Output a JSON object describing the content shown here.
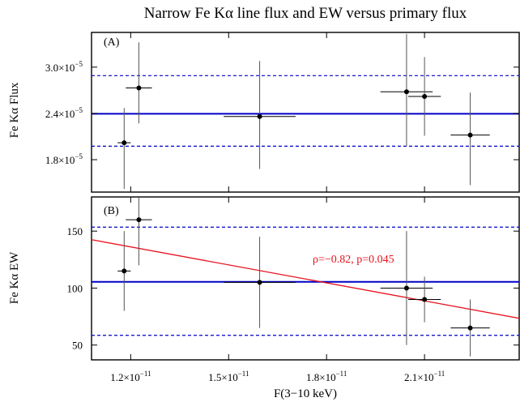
{
  "chart_data": [
    {
      "type": "scatter",
      "panel_label": "(A)",
      "title": "Narrow Fe Kα line flux and EW versus primary flux",
      "ylabel": "Fe Kα Flux",
      "xlabel": "",
      "xlim": [
        1.08e-11,
        2.39e-11
      ],
      "ylim": [
        1.38e-05,
        3.45e-05
      ],
      "xticks": [
        {
          "value": 1.2e-11,
          "mant": "1.2×10",
          "exp": "−11"
        },
        {
          "value": 1.5e-11,
          "mant": "1.5×10",
          "exp": "−11"
        },
        {
          "value": 1.8e-11,
          "mant": "1.8×10",
          "exp": "−11"
        },
        {
          "value": 2.1e-11,
          "mant": "2.1×10",
          "exp": "−11"
        }
      ],
      "yticks": [
        {
          "value": 1.8e-05,
          "mant": "1.8×10",
          "exp": "−5"
        },
        {
          "value": 2.4e-05,
          "mant": "2.4×10",
          "exp": "−5"
        },
        {
          "value": 3e-05,
          "mant": "3.0×10",
          "exp": "−5"
        }
      ],
      "points": [
        {
          "x": 1.18e-11,
          "xerr": 2e-13,
          "y": 2.02e-05,
          "ylo": 1.42e-05,
          "yhi": 2.47e-05
        },
        {
          "x": 1.225e-11,
          "xerr": 4e-13,
          "y": 2.73e-05,
          "ylo": 2.27e-05,
          "yhi": 3.32e-05
        },
        {
          "x": 1.595e-11,
          "xerr": 1.1e-12,
          "y": 2.36e-05,
          "ylo": 1.68e-05,
          "yhi": 3.08e-05
        },
        {
          "x": 2.045e-11,
          "xerr": 8e-13,
          "y": 2.68e-05,
          "ylo": 1.98e-05,
          "yhi": 3.43e-05
        },
        {
          "x": 2.1e-11,
          "xerr": 5e-13,
          "y": 2.62e-05,
          "ylo": 2.11e-05,
          "yhi": 3.13e-05
        },
        {
          "x": 2.24e-11,
          "xerr": 6e-13,
          "y": 2.12e-05,
          "ylo": 1.47e-05,
          "yhi": 2.67e-05
        }
      ],
      "hlines": [
        {
          "y": 2.395e-05,
          "style": "solid"
        },
        {
          "y": 2.89e-05,
          "style": "dashed"
        },
        {
          "y": 1.975e-05,
          "style": "dashed"
        }
      ],
      "grid": false
    },
    {
      "type": "scatter",
      "panel_label": "(B)",
      "ylabel": "Fe Kα EW",
      "xlabel": "F(3−10 keV)",
      "xlim": [
        1.08e-11,
        2.39e-11
      ],
      "ylim": [
        37,
        180
      ],
      "xticks": [
        {
          "value": 1.2e-11,
          "mant": "1.2×10",
          "exp": "−11"
        },
        {
          "value": 1.5e-11,
          "mant": "1.5×10",
          "exp": "−11"
        },
        {
          "value": 1.8e-11,
          "mant": "1.8×10",
          "exp": "−11"
        },
        {
          "value": 2.1e-11,
          "mant": "2.1×10",
          "exp": "−11"
        }
      ],
      "yticks": [
        {
          "value": 50,
          "label": "50"
        },
        {
          "value": 100,
          "label": "100"
        },
        {
          "value": 150,
          "label": "150"
        }
      ],
      "points": [
        {
          "x": 1.18e-11,
          "xerr": 2e-13,
          "y": 115,
          "ylo": 80,
          "yhi": 150
        },
        {
          "x": 1.225e-11,
          "xerr": 4e-13,
          "y": 160,
          "ylo": 120,
          "yhi": 180
        },
        {
          "x": 1.595e-11,
          "xerr": 1.1e-12,
          "y": 105,
          "ylo": 65,
          "yhi": 145
        },
        {
          "x": 2.045e-11,
          "xerr": 8e-13,
          "y": 100,
          "ylo": 50,
          "yhi": 150
        },
        {
          "x": 2.1e-11,
          "xerr": 5e-13,
          "y": 90,
          "ylo": 70,
          "yhi": 110
        },
        {
          "x": 2.24e-11,
          "xerr": 6e-13,
          "y": 65,
          "ylo": 40,
          "yhi": 90
        }
      ],
      "hlines": [
        {
          "y": 105.5,
          "style": "solid"
        },
        {
          "y": 153.5,
          "style": "dashed"
        },
        {
          "y": 58.5,
          "style": "dashed"
        }
      ],
      "fit_line": {
        "x": [
          1.08e-11,
          2.39e-11
        ],
        "y": [
          142.5,
          73.5
        ]
      },
      "annotation": {
        "text": "ρ=−0.82, p=0.045"
      },
      "grid": false
    }
  ],
  "colors": {
    "mean_line": "#0000c8",
    "fit_line": "#e8121e",
    "points": "#000000"
  }
}
